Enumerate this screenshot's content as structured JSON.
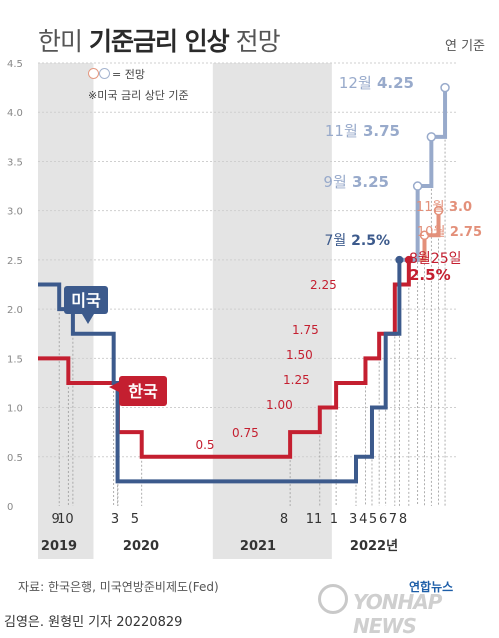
{
  "title": {
    "pre": "한미",
    "bold": "기준금리 인상",
    "post": "전망"
  },
  "unit": "연 기준",
  "legend": {
    "forecast": "= 전망",
    "note": "※미국 금리 상단 기준"
  },
  "colors": {
    "us": "#3c5a8c",
    "us_forecast": "#98aacb",
    "korea": "#c41f30",
    "korea_forecast": "#e3907a",
    "shade": "#e4e4e4"
  },
  "chart_data": {
    "type": "line",
    "title": "한미 기준금리 인상 전망",
    "ylabel": "연 기준",
    "ylim": [
      0,
      4.5
    ],
    "yticks": [
      "0",
      "0.5",
      "1.0",
      "1.5",
      "2.0",
      "2.5",
      "3.0",
      "3.5",
      "4.0",
      "4.5"
    ],
    "xticks": [
      "9",
      "10",
      "3",
      "5",
      "8",
      "11",
      "1",
      "3",
      "4",
      "5",
      "6",
      "7",
      "8"
    ],
    "years": [
      "2019",
      "2020",
      "2021",
      "2022년"
    ],
    "series": [
      {
        "name": "미국",
        "values": [
          {
            "date": "2019-07-31",
            "value": 2.25
          },
          {
            "date": "2019-09-18",
            "value": 2.0
          },
          {
            "date": "2019-10-30",
            "value": 1.75
          },
          {
            "date": "2020-03-03",
            "value": 1.25
          },
          {
            "date": "2020-03-15",
            "value": 0.25
          },
          {
            "date": "2022-03-16",
            "value": 0.5
          },
          {
            "date": "2022-05-04",
            "value": 1.0
          },
          {
            "date": "2022-06-15",
            "value": 1.75
          },
          {
            "date": "2022-07-27",
            "value": 2.5
          }
        ],
        "forecast": [
          {
            "date": "2022-07-27",
            "value": 2.5
          },
          {
            "date": "2022-09-21",
            "value": 3.25
          },
          {
            "date": "2022-11-02",
            "value": 3.75
          },
          {
            "date": "2022-12-14",
            "value": 4.25
          }
        ],
        "labels": [
          {
            "text": "7월 ",
            "value": "2.5%"
          },
          {
            "text": "9월",
            "value": "3.25"
          },
          {
            "text": "11월",
            "value": "3.75"
          },
          {
            "text": "12월",
            "value": "4.25"
          }
        ]
      },
      {
        "name": "한국",
        "values": [
          {
            "date": "2019-07-18",
            "value": 1.5
          },
          {
            "date": "2019-10-16",
            "value": 1.25
          },
          {
            "date": "2020-03-16",
            "value": 0.75
          },
          {
            "date": "2020-05-28",
            "value": 0.5
          },
          {
            "date": "2021-08-26",
            "value": 0.75
          },
          {
            "date": "2021-11-25",
            "value": 1.0
          },
          {
            "date": "2022-01-14",
            "value": 1.25
          },
          {
            "date": "2022-04-14",
            "value": 1.5
          },
          {
            "date": "2022-05-26",
            "value": 1.75
          },
          {
            "date": "2022-07-13",
            "value": 2.25
          },
          {
            "date": "2022-08-25",
            "value": 2.5
          }
        ],
        "forecast": [
          {
            "date": "2022-08-25",
            "value": 2.5
          },
          {
            "date": "2022-10-12",
            "value": 2.75
          },
          {
            "date": "2022-11-24",
            "value": 3.0
          }
        ],
        "labels": [
          {
            "text": "0.5"
          },
          {
            "text": "0.75"
          },
          {
            "text": "1.00"
          },
          {
            "text": "1.25"
          },
          {
            "text": "1.50"
          },
          {
            "text": "1.75"
          },
          {
            "text": "2.25"
          },
          {
            "text": "8월25일",
            "value": "2.5%"
          },
          {
            "text": "10월",
            "value": "2.75"
          },
          {
            "text": "11월",
            "value": "3.0"
          }
        ]
      }
    ]
  },
  "source": "자료: 한국은행, 미국연방준비제도(Fed)",
  "credit": "김영은. 원형민 기자  20220829",
  "logo": {
    "brand": "연합뉴스",
    "name": "YONHAP NEWS"
  }
}
